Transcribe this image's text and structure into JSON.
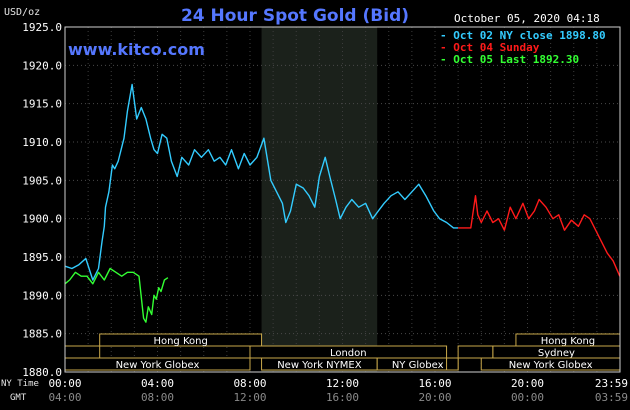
{
  "header": {
    "unit": "USD/oz",
    "title": "24 Hour Spot Gold (Bid)",
    "date_time": "October 05, 2020 04:18",
    "watermark": "www.kitco.com"
  },
  "legend": [
    {
      "text": "- Oct 02 NY close 1898.80",
      "color": "#33ccff"
    },
    {
      "text": "- Oct 04 Sunday",
      "color": "#ff1a1a"
    },
    {
      "text": "- Oct 05 Last 1892.30",
      "color": "#33ff33"
    }
  ],
  "row_labels": {
    "ny_time": "NY Time",
    "gmt": "GMT"
  },
  "sessions": [
    {
      "label": "Hong Kong",
      "row": 1,
      "start": 1.5,
      "end": 8.5
    },
    {
      "label": "London",
      "row": 2,
      "start": 8.0,
      "end": 16.5
    },
    {
      "label": "New York Globex",
      "row": 3,
      "start": 0.0,
      "end": 8.0
    },
    {
      "label": "New York NYMEX",
      "row": 3,
      "start": 8.5,
      "end": 13.5
    },
    {
      "label": "NY Globex",
      "row": 3,
      "start": 13.5,
      "end": 17.0
    },
    {
      "label": "Hong Kong",
      "row": 1,
      "start": 19.5,
      "end": 24.0
    },
    {
      "label": "Sydney",
      "row": 2,
      "start": 18.5,
      "end": 24.0
    },
    {
      "label": "New York Globex",
      "row": 3,
      "start": 18.0,
      "end": 24.0
    }
  ],
  "chart_data": {
    "type": "line",
    "title": "24 Hour Spot Gold (Bid)",
    "ylabel": "USD/oz",
    "xlim": [
      0,
      24
    ],
    "ylim": [
      1880,
      1925
    ],
    "yticks": [
      "1925.0",
      "1920.0",
      "1915.0",
      "1910.0",
      "1905.0",
      "1900.0",
      "1895.0",
      "1890.0",
      "1885.0",
      "1880.0"
    ],
    "xticks_ny": [
      "00:00",
      "04:00",
      "08:00",
      "12:00",
      "16:00",
      "20:00",
      "23:59"
    ],
    "xticks_gmt": [
      "04:00",
      "08:00",
      "12:00",
      "16:00",
      "20:00",
      "00:00",
      "03:59"
    ],
    "shaded_band": [
      8.5,
      13.5
    ],
    "grid": true,
    "series": [
      {
        "name": "Oct 02 NY close 1898.80",
        "color": "#33ccff",
        "x": [
          0.0,
          0.3,
          0.6,
          0.9,
          1.2,
          1.45,
          1.6,
          1.7,
          1.75,
          1.9,
          2.05,
          2.15,
          2.3,
          2.55,
          2.7,
          2.9,
          3.1,
          3.3,
          3.5,
          3.7,
          3.85,
          4.0,
          4.2,
          4.4,
          4.6,
          4.85,
          5.05,
          5.35,
          5.6,
          5.9,
          6.2,
          6.45,
          6.7,
          6.95,
          7.2,
          7.5,
          7.75,
          8.0,
          8.3,
          8.6,
          8.9,
          9.15,
          9.4,
          9.55,
          9.75,
          10.0,
          10.3,
          10.55,
          10.8,
          11.0,
          11.25,
          11.45,
          11.7,
          11.9,
          12.15,
          12.4,
          12.7,
          13.0,
          13.3,
          13.55,
          13.8,
          14.1,
          14.4,
          14.7,
          15.0,
          15.3,
          15.6,
          15.95,
          16.2,
          16.5,
          16.8,
          17.0
        ],
        "y": [
          1893.8,
          1893.5,
          1894.0,
          1894.8,
          1892.0,
          1893.5,
          1897.0,
          1899.0,
          1901.5,
          1903.5,
          1907.0,
          1906.5,
          1907.5,
          1910.5,
          1914.0,
          1917.5,
          1913.0,
          1914.5,
          1913.0,
          1910.5,
          1909.0,
          1908.5,
          1911.0,
          1910.5,
          1907.5,
          1905.5,
          1908.0,
          1907.0,
          1909.0,
          1908.0,
          1909.0,
          1907.5,
          1908.0,
          1907.0,
          1909.0,
          1906.5,
          1908.5,
          1907.0,
          1908.0,
          1910.5,
          1905.0,
          1903.5,
          1902.0,
          1899.5,
          1901.0,
          1904.5,
          1904.0,
          1903.0,
          1901.5,
          1905.5,
          1908.0,
          1905.5,
          1902.5,
          1900.0,
          1901.5,
          1902.5,
          1901.5,
          1902.0,
          1900.0,
          1901.0,
          1902.0,
          1903.0,
          1903.5,
          1902.5,
          1903.5,
          1904.5,
          1903.0,
          1901.0,
          1900.0,
          1899.5,
          1898.8,
          1898.8
        ]
      },
      {
        "name": "Oct 04 Sunday",
        "color": "#ff1a1a",
        "x": [
          17.0,
          17.55,
          17.75,
          17.85,
          18.0,
          18.25,
          18.5,
          18.75,
          19.0,
          19.25,
          19.5,
          19.8,
          20.05,
          20.3,
          20.5,
          20.8,
          21.1,
          21.35,
          21.6,
          21.9,
          22.2,
          22.45,
          22.7,
          22.95,
          23.2,
          23.45,
          23.7,
          23.99
        ],
        "y": [
          1898.8,
          1898.8,
          1903.0,
          1900.5,
          1899.5,
          1901.0,
          1899.5,
          1900.0,
          1898.5,
          1901.5,
          1900.0,
          1902.0,
          1900.0,
          1901.0,
          1902.5,
          1901.5,
          1900.0,
          1900.5,
          1898.5,
          1899.8,
          1899.0,
          1900.5,
          1900.0,
          1898.5,
          1897.0,
          1895.5,
          1894.5,
          1892.5
        ]
      },
      {
        "name": "Oct 05 Last 1892.30",
        "color": "#33ff33",
        "x": [
          0.0,
          0.2,
          0.45,
          0.7,
          0.95,
          1.2,
          1.45,
          1.7,
          1.95,
          2.2,
          2.45,
          2.7,
          2.95,
          3.2,
          3.4,
          3.5,
          3.6,
          3.75,
          3.85,
          3.95,
          4.05,
          4.15,
          4.3,
          4.45
        ],
        "y": [
          1891.5,
          1892.0,
          1893.0,
          1892.5,
          1892.5,
          1891.5,
          1893.0,
          1892.0,
          1893.5,
          1893.0,
          1892.5,
          1893.0,
          1893.0,
          1892.5,
          1887.0,
          1886.5,
          1888.5,
          1887.5,
          1890.0,
          1889.5,
          1891.0,
          1890.5,
          1892.0,
          1892.3
        ]
      }
    ]
  }
}
